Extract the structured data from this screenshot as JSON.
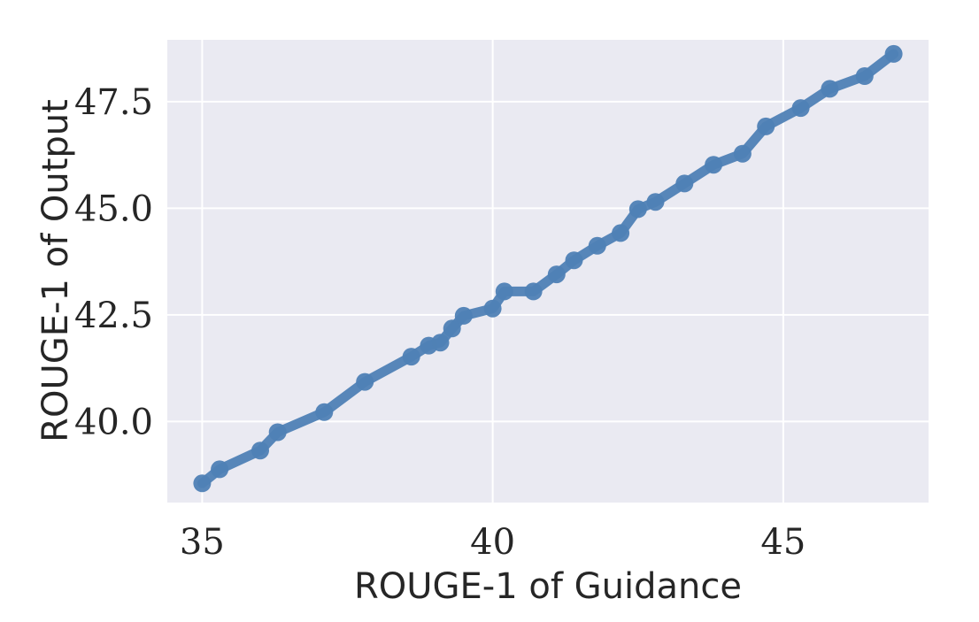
{
  "chart_data": {
    "type": "line",
    "xlabel": "ROUGE-1 of Guidance",
    "ylabel": "ROUGE-1 of Output",
    "xlim": [
      34.4,
      47.5
    ],
    "ylim": [
      38.1,
      48.95
    ],
    "xticks": [
      35,
      40,
      45
    ],
    "xtick_labels": [
      "35",
      "40",
      "45"
    ],
    "yticks": [
      40.0,
      42.5,
      45.0,
      47.5
    ],
    "ytick_labels": [
      "40.0",
      "42.5",
      "45.0",
      "47.5"
    ],
    "grid": true,
    "series": [
      {
        "color": "#4f81b5",
        "x": [
          35.0,
          35.3,
          36.0,
          36.3,
          37.1,
          37.8,
          38.6,
          38.9,
          39.1,
          39.3,
          39.5,
          40.0,
          40.2,
          40.7,
          41.1,
          41.4,
          41.8,
          42.2,
          42.5,
          42.8,
          43.3,
          43.8,
          44.3,
          44.7,
          45.3,
          45.8,
          46.4,
          46.9
        ],
        "y": [
          38.55,
          38.88,
          39.32,
          39.75,
          40.22,
          40.93,
          41.52,
          41.78,
          41.85,
          42.18,
          42.48,
          42.65,
          43.05,
          43.05,
          43.45,
          43.78,
          44.12,
          44.42,
          44.98,
          45.15,
          45.58,
          46.02,
          46.28,
          46.92,
          47.35,
          47.8,
          48.1,
          48.62
        ]
      }
    ]
  }
}
